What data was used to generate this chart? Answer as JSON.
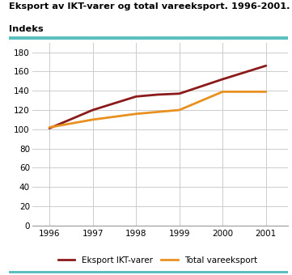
{
  "title_line1": "Eksport av IKT-varer og total vareeksport. 1996-2001.",
  "title_line2": "Indeks",
  "years": [
    1996,
    1997,
    1998,
    1998.5,
    1999,
    2000,
    2001
  ],
  "ikt_values": [
    101,
    120,
    134,
    136,
    137,
    152,
    166
  ],
  "total_values": [
    102,
    110,
    116,
    118,
    120,
    139,
    139
  ],
  "ikt_color": "#8B1A1A",
  "total_color": "#E89020",
  "ikt_label": "Eksport IKT-varer",
  "total_label": "Total vareeksport",
  "ylim": [
    0,
    190
  ],
  "yticks": [
    0,
    20,
    40,
    60,
    80,
    100,
    120,
    140,
    160,
    180
  ],
  "xlim": [
    1995.6,
    2001.5
  ],
  "xticks": [
    1996,
    1997,
    1998,
    1999,
    2000,
    2001
  ],
  "title_color": "#000000",
  "grid_color": "#cccccc",
  "teal_color": "#5bbfbf",
  "background_color": "#ffffff",
  "line_width": 2.0
}
